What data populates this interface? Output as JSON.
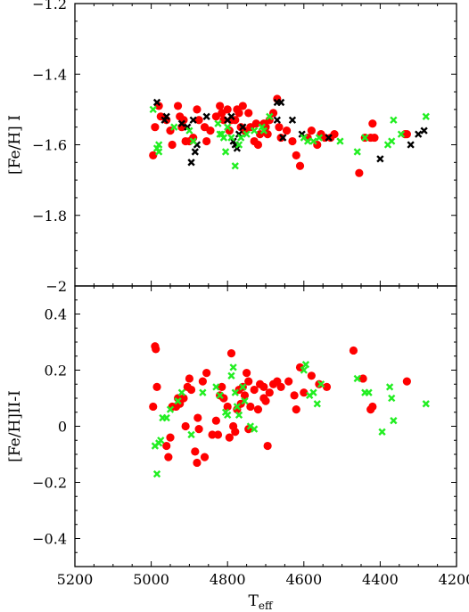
{
  "colors": {
    "red": "#ff0000",
    "green": "#22ee22",
    "black": "#000000"
  },
  "chart_data": [
    {
      "type": "scatter",
      "panel": "top",
      "xlim": [
        5200,
        4200
      ],
      "ylim": [
        -2.0,
        -1.2
      ],
      "ylabel": "[Fe/H] I",
      "xlabel": "",
      "xticks": [],
      "yticks": [
        "-1.2",
        "-1.4",
        "-1.6",
        "-1.8",
        "-2"
      ],
      "grid": false,
      "series": [
        {
          "marker": "circle",
          "color": "#ff0000",
          "points": [
            [
              4995,
              -1.63
            ],
            [
              4990,
              -1.55
            ],
            [
              4980,
              -1.49
            ],
            [
              4975,
              -1.52
            ],
            [
              4960,
              -1.53
            ],
            [
              4950,
              -1.56
            ],
            [
              4945,
              -1.6
            ],
            [
              4930,
              -1.49
            ],
            [
              4925,
              -1.52
            ],
            [
              4920,
              -1.55
            ],
            [
              4915,
              -1.53
            ],
            [
              4910,
              -1.59
            ],
            [
              4900,
              -1.59
            ],
            [
              4890,
              -1.58
            ],
            [
              4880,
              -1.5
            ],
            [
              4875,
              -1.53
            ],
            [
              4860,
              -1.55
            ],
            [
              4855,
              -1.59
            ],
            [
              4845,
              -1.56
            ],
            [
              4830,
              -1.52
            ],
            [
              4820,
              -1.49
            ],
            [
              4815,
              -1.51
            ],
            [
              4810,
              -1.53
            ],
            [
              4800,
              -1.5
            ],
            [
              4795,
              -1.56
            ],
            [
              4790,
              -1.53
            ],
            [
              4780,
              -1.53
            ],
            [
              4775,
              -1.5
            ],
            [
              4770,
              -1.51
            ],
            [
              4765,
              -1.55
            ],
            [
              4760,
              -1.49
            ],
            [
              4755,
              -1.56
            ],
            [
              4745,
              -1.51
            ],
            [
              4740,
              -1.55
            ],
            [
              4730,
              -1.59
            ],
            [
              4720,
              -1.6
            ],
            [
              4715,
              -1.57
            ],
            [
              4705,
              -1.54
            ],
            [
              4700,
              -1.55
            ],
            [
              4695,
              -1.57
            ],
            [
              4690,
              -1.53
            ],
            [
              4680,
              -1.51
            ],
            [
              4670,
              -1.47
            ],
            [
              4665,
              -1.55
            ],
            [
              4660,
              -1.58
            ],
            [
              4645,
              -1.56
            ],
            [
              4630,
              -1.59
            ],
            [
              4620,
              -1.63
            ],
            [
              4610,
              -1.66
            ],
            [
              4590,
              -1.58
            ],
            [
              4580,
              -1.56
            ],
            [
              4565,
              -1.6
            ],
            [
              4555,
              -1.57
            ],
            [
              4530,
              -1.58
            ],
            [
              4520,
              -1.57
            ],
            [
              4455,
              -1.68
            ],
            [
              4440,
              -1.58
            ],
            [
              4425,
              -1.58
            ],
            [
              4420,
              -1.54
            ],
            [
              4415,
              -1.58
            ],
            [
              4335,
              -1.57
            ],
            [
              4330,
              -1.57
            ],
            [
              4725,
              -1.54
            ],
            [
              4545,
              -1.58
            ]
          ]
        },
        {
          "marker": "x",
          "color": "#000000",
          "points": [
            [
              4985,
              -1.48
            ],
            [
              4965,
              -1.53
            ],
            [
              4960,
              -1.52
            ],
            [
              4920,
              -1.54
            ],
            [
              4905,
              -1.55
            ],
            [
              4895,
              -1.65
            ],
            [
              4890,
              -1.53
            ],
            [
              4885,
              -1.62
            ],
            [
              4880,
              -1.6
            ],
            [
              4855,
              -1.52
            ],
            [
              4800,
              -1.53
            ],
            [
              4790,
              -1.52
            ],
            [
              4785,
              -1.59
            ],
            [
              4780,
              -1.6
            ],
            [
              4775,
              -1.61
            ],
            [
              4770,
              -1.57
            ],
            [
              4760,
              -1.55
            ],
            [
              4670,
              -1.48
            ],
            [
              4660,
              -1.48
            ],
            [
              4670,
              -1.53
            ],
            [
              4655,
              -1.58
            ],
            [
              4630,
              -1.53
            ],
            [
              4605,
              -1.57
            ],
            [
              4535,
              -1.58
            ],
            [
              4400,
              -1.64
            ],
            [
              4320,
              -1.6
            ],
            [
              4300,
              -1.57
            ],
            [
              4285,
              -1.56
            ]
          ]
        },
        {
          "marker": "x",
          "color": "#22ee22",
          "points": [
            [
              4995,
              -1.5
            ],
            [
              4985,
              -1.61
            ],
            [
              4980,
              -1.6
            ],
            [
              4980,
              -1.62
            ],
            [
              4940,
              -1.55
            ],
            [
              4900,
              -1.56
            ],
            [
              4890,
              -1.59
            ],
            [
              4825,
              -1.54
            ],
            [
              4815,
              -1.57
            ],
            [
              4810,
              -1.58
            ],
            [
              4805,
              -1.62
            ],
            [
              4800,
              -1.55
            ],
            [
              4790,
              -1.58
            ],
            [
              4780,
              -1.66
            ],
            [
              4770,
              -1.6
            ],
            [
              4765,
              -1.58
            ],
            [
              4750,
              -1.57
            ],
            [
              4730,
              -1.56
            ],
            [
              4710,
              -1.55
            ],
            [
              4705,
              -1.56
            ],
            [
              4690,
              -1.52
            ],
            [
              4600,
              -1.58
            ],
            [
              4590,
              -1.59
            ],
            [
              4575,
              -1.59
            ],
            [
              4560,
              -1.58
            ],
            [
              4460,
              -1.62
            ],
            [
              4440,
              -1.58
            ],
            [
              4380,
              -1.6
            ],
            [
              4370,
              -1.59
            ],
            [
              4365,
              -1.53
            ],
            [
              4345,
              -1.57
            ],
            [
              4280,
              -1.52
            ],
            [
              4505,
              -1.59
            ],
            [
              4820,
              -1.57
            ]
          ]
        }
      ]
    },
    {
      "type": "scatter",
      "panel": "bottom",
      "xlim": [
        5200,
        4200
      ],
      "ylim": [
        -0.5,
        0.5
      ],
      "ylabel": "[Fe/H]II-I",
      "xlabel": "T_eff",
      "xticks": [
        "5200",
        "5000",
        "4800",
        "4600",
        "4400",
        "4200"
      ],
      "yticks": [
        "0.4",
        "0.2",
        "0",
        "-0.2",
        "-0.4"
      ],
      "grid": false,
      "series": [
        {
          "marker": "circle",
          "color": "#ff0000",
          "points": [
            [
              4990,
              0.285
            ],
            [
              4988,
              0.275
            ],
            [
              4995,
              0.07
            ],
            [
              4985,
              0.14
            ],
            [
              4960,
              -0.07
            ],
            [
              4955,
              -0.11
            ],
            [
              4950,
              -0.04
            ],
            [
              4945,
              0.07
            ],
            [
              4935,
              0.07
            ],
            [
              4930,
              0.1
            ],
            [
              4925,
              0.08
            ],
            [
              4915,
              0.1
            ],
            [
              4910,
              0.0
            ],
            [
              4905,
              0.14
            ],
            [
              4900,
              0.17
            ],
            [
              4895,
              0.13
            ],
            [
              4885,
              -0.09
            ],
            [
              4880,
              -0.13
            ],
            [
              4878,
              0.03
            ],
            [
              4875,
              -0.01
            ],
            [
              4865,
              0.16
            ],
            [
              4860,
              -0.11
            ],
            [
              4855,
              0.19
            ],
            [
              4840,
              -0.03
            ],
            [
              4830,
              0.02
            ],
            [
              4825,
              -0.03
            ],
            [
              4820,
              0.11
            ],
            [
              4815,
              0.14
            ],
            [
              4810,
              0.1
            ],
            [
              4800,
              0.07
            ],
            [
              4795,
              -0.04
            ],
            [
              4790,
              0.26
            ],
            [
              4785,
              0.0
            ],
            [
              4780,
              -0.02
            ],
            [
              4775,
              0.06
            ],
            [
              4770,
              0.13
            ],
            [
              4765,
              0.08
            ],
            [
              4760,
              0.14
            ],
            [
              4755,
              0.11
            ],
            [
              4750,
              0.19
            ],
            [
              4745,
              0.16
            ],
            [
              4740,
              0.07
            ],
            [
              4730,
              0.13
            ],
            [
              4720,
              0.06
            ],
            [
              4715,
              0.15
            ],
            [
              4705,
              0.14
            ],
            [
              4700,
              0.09
            ],
            [
              4695,
              -0.07
            ],
            [
              4690,
              0.12
            ],
            [
              4680,
              0.15
            ],
            [
              4670,
              0.16
            ],
            [
              4660,
              0.14
            ],
            [
              4640,
              0.16
            ],
            [
              4625,
              0.11
            ],
            [
              4620,
              0.06
            ],
            [
              4610,
              0.21
            ],
            [
              4600,
              0.12
            ],
            [
              4580,
              0.18
            ],
            [
              4560,
              0.15
            ],
            [
              4540,
              0.14
            ],
            [
              4470,
              0.27
            ],
            [
              4445,
              0.17
            ],
            [
              4425,
              0.06
            ],
            [
              4420,
              0.07
            ],
            [
              4330,
              0.16
            ],
            [
              4705,
              0.1
            ],
            [
              4745,
              -0.01
            ]
          ]
        },
        {
          "marker": "x",
          "color": "#22ee22",
          "points": [
            [
              4990,
              -0.07
            ],
            [
              4985,
              -0.17
            ],
            [
              4980,
              -0.06
            ],
            [
              4975,
              -0.05
            ],
            [
              4970,
              0.03
            ],
            [
              4960,
              0.03
            ],
            [
              4950,
              0.06
            ],
            [
              4930,
              0.09
            ],
            [
              4920,
              0.12
            ],
            [
              4895,
              -0.03
            ],
            [
              4865,
              0.12
            ],
            [
              4830,
              0.14
            ],
            [
              4820,
              0.11
            ],
            [
              4805,
              0.05
            ],
            [
              4800,
              0.04
            ],
            [
              4790,
              0.18
            ],
            [
              4785,
              0.21
            ],
            [
              4780,
              0.12
            ],
            [
              4775,
              0.07
            ],
            [
              4770,
              0.04
            ],
            [
              4760,
              0.14
            ],
            [
              4755,
              0.09
            ],
            [
              4740,
              0.0
            ],
            [
              4730,
              -0.01
            ],
            [
              4600,
              0.2
            ],
            [
              4595,
              0.22
            ],
            [
              4585,
              0.11
            ],
            [
              4575,
              0.12
            ],
            [
              4565,
              0.08
            ],
            [
              4460,
              0.17
            ],
            [
              4440,
              0.12
            ],
            [
              4430,
              0.12
            ],
            [
              4395,
              -0.02
            ],
            [
              4375,
              0.14
            ],
            [
              4370,
              0.1
            ],
            [
              4365,
              0.02
            ],
            [
              4280,
              0.08
            ],
            [
              4555,
              0.15
            ]
          ]
        }
      ]
    }
  ]
}
